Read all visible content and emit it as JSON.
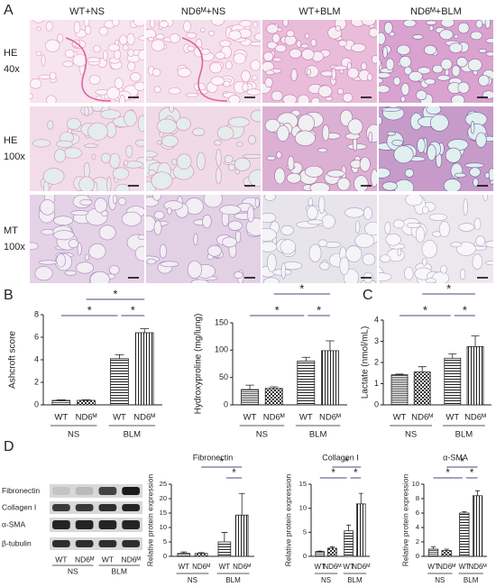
{
  "panel_labels": [
    "A",
    "B",
    "C",
    "D"
  ],
  "histology": {
    "columns": [
      "WT+NS",
      "ND6ᴹ+NS",
      "WT+BLM",
      "ND6ᴹ+BLM"
    ],
    "rows": [
      [
        "HE",
        "40x"
      ],
      [
        "HE",
        "100x"
      ],
      [
        "MT",
        "100x"
      ]
    ]
  },
  "western_blot": {
    "proteins": [
      "Fibronectin",
      "Collagen I",
      "α-SMA",
      "β-tubulin"
    ],
    "lanes": [
      "WT",
      "ND6ᴹ",
      "WT",
      "ND6ᴹ"
    ],
    "groups": [
      "NS",
      "BLM"
    ]
  },
  "chart_data": [
    {
      "type": "bar",
      "ylabel": "Ashcroft score",
      "categories": [
        "WT",
        "ND6ᴹ",
        "WT",
        "ND6ᴹ"
      ],
      "groups": [
        "NS",
        "BLM"
      ],
      "values": [
        0.4,
        0.4,
        4.1,
        6.4
      ],
      "error": [
        0.05,
        0.05,
        0.35,
        0.35
      ],
      "ylim": [
        0,
        8
      ],
      "yticks": [
        0,
        2,
        4,
        6,
        8
      ],
      "significance": [
        "*",
        "*",
        "*"
      ]
    },
    {
      "type": "bar",
      "ylabel": "Hydroxyproline (mg/lung)",
      "categories": [
        "WT",
        "ND6ᴹ",
        "WT",
        "ND6ᴹ"
      ],
      "groups": [
        "NS",
        "BLM"
      ],
      "values": [
        28,
        30,
        80,
        99
      ],
      "error": [
        8,
        3,
        7,
        18
      ],
      "ylim": [
        0,
        150
      ],
      "yticks": [
        0,
        50,
        100,
        150
      ],
      "significance": [
        "*",
        "*",
        "*"
      ]
    },
    {
      "type": "bar",
      "ylabel": "Lactate (nmol/mL)",
      "categories": [
        "WT",
        "ND6ᴹ",
        "WT",
        "ND6ᴹ"
      ],
      "groups": [
        "NS",
        "BLM"
      ],
      "values": [
        1.42,
        1.55,
        2.2,
        2.75
      ],
      "error": [
        0.03,
        0.25,
        0.2,
        0.5
      ],
      "ylim": [
        0,
        4
      ],
      "yticks": [
        0,
        1,
        2,
        3,
        4
      ],
      "significance": [
        "*",
        "*",
        "*"
      ]
    },
    {
      "type": "bar",
      "title": "Fibronectin",
      "ylabel": "Relative protein expression",
      "categories": [
        "WT",
        "ND6ᴹ",
        "WT",
        "ND6ᴹ"
      ],
      "groups": [
        "NS",
        "BLM"
      ],
      "values": [
        1,
        1,
        5,
        14.3
      ],
      "error": [
        0.5,
        0.3,
        3.3,
        7.5
      ],
      "ylim": [
        0,
        25
      ],
      "yticks": [
        0,
        5,
        10,
        15,
        20,
        25
      ],
      "significance": [
        "*",
        "*"
      ]
    },
    {
      "type": "bar",
      "title": "Collagen I",
      "ylabel": "Relative protein expression",
      "categories": [
        "WT",
        "ND6ᴹ",
        "WT",
        "ND6ᴹ"
      ],
      "groups": [
        "NS",
        "BLM"
      ],
      "values": [
        1,
        1.7,
        5.3,
        10.9
      ],
      "error": [
        0.1,
        0.3,
        1.2,
        2.2
      ],
      "ylim": [
        0,
        15
      ],
      "yticks": [
        0,
        5,
        10,
        15
      ],
      "significance": [
        "*",
        "*",
        "*"
      ]
    },
    {
      "type": "bar",
      "title": "α-SMA",
      "ylabel": "Relative protein expression",
      "categories": [
        "WT",
        "ND6ᴹ",
        "WT",
        "ND6ᴹ"
      ],
      "groups": [
        "NS",
        "BLM"
      ],
      "values": [
        1.0,
        0.8,
        6.0,
        8.4
      ],
      "error": [
        0.3,
        0.2,
        0.2,
        0.7
      ],
      "ylim": [
        0,
        10
      ],
      "yticks": [
        0,
        2,
        4,
        6,
        8,
        10
      ],
      "significance": [
        "*",
        "*",
        "*"
      ]
    }
  ]
}
